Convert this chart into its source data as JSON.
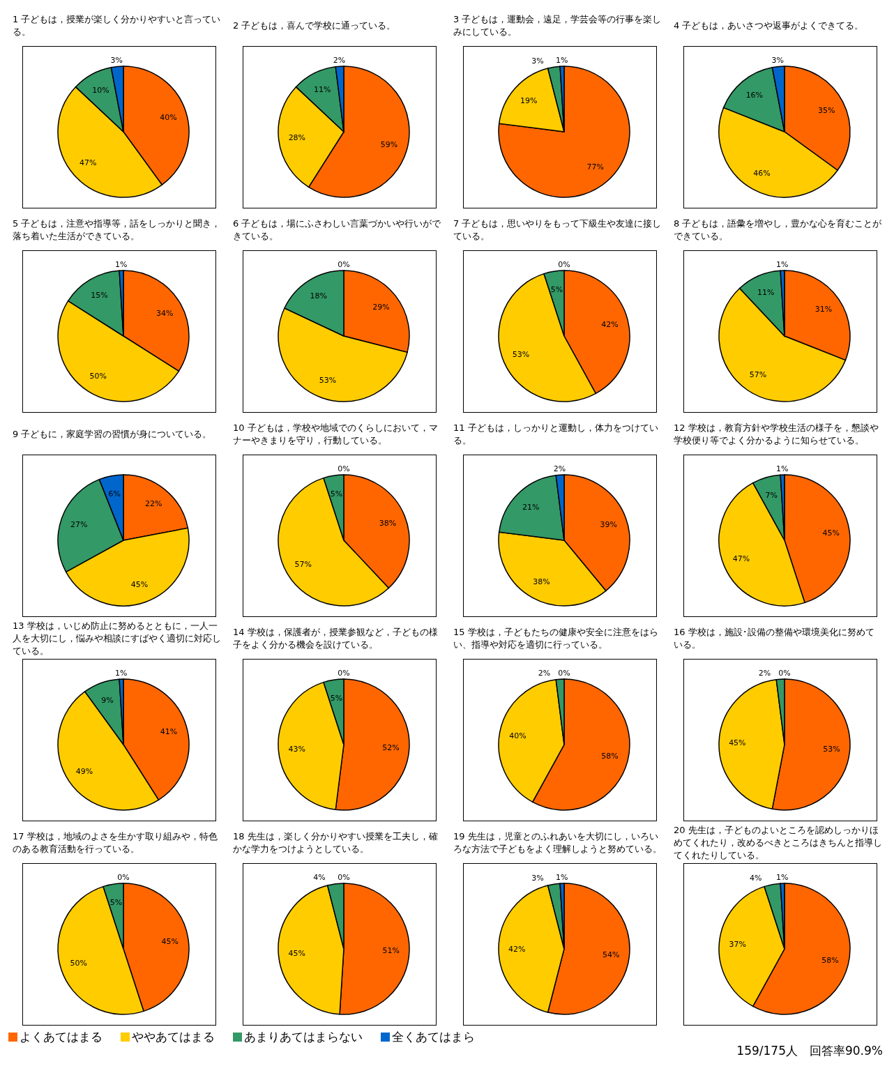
{
  "chart_data": [
    {
      "type": "pie",
      "title": "1 子どもは，授業が楽しく分かりやすいと言っている。",
      "categories": [
        null,
        null,
        null,
        null
      ],
      "values": [
        40,
        47,
        10,
        3
      ],
      "value_labels": [
        "40%",
        "47%",
        "10%",
        "3%"
      ],
      "colors": [
        "#ff6600",
        "#ffcc00",
        "#339966",
        "#0066cc"
      ]
    },
    {
      "type": "pie",
      "title": "2 子どもは，喜んで学校に通っている。",
      "categories": [
        null,
        null,
        null,
        null
      ],
      "values": [
        59,
        28,
        11,
        2
      ],
      "value_labels": [
        "59%",
        "28%",
        "11%",
        "2%"
      ],
      "colors": [
        "#ff6600",
        "#ffcc00",
        "#339966",
        "#0066cc"
      ]
    },
    {
      "type": "pie",
      "title": "3 子どもは，運動会，遠足，学芸会等の行事を楽しみにしている。",
      "categories": [
        null,
        null,
        null,
        null
      ],
      "values": [
        77,
        19,
        3,
        1
      ],
      "value_labels": [
        "77%",
        "19%",
        "3%",
        "1%"
      ],
      "colors": [
        "#ff6600",
        "#ffcc00",
        "#339966",
        "#0066cc"
      ]
    },
    {
      "type": "pie",
      "title": "4 子どもは，あいさつや返事がよくできてる。",
      "categories": [
        null,
        null,
        null,
        null
      ],
      "values": [
        35,
        46,
        16,
        3
      ],
      "value_labels": [
        "35%",
        "46%",
        "16%",
        "3%"
      ],
      "colors": [
        "#ff6600",
        "#ffcc00",
        "#339966",
        "#0066cc"
      ]
    },
    {
      "type": "pie",
      "title": "5 子どもは，注意や指導等，話をしっかりと聞き，落ち着いた生活ができている。",
      "categories": [
        null,
        null,
        null,
        null
      ],
      "values": [
        34,
        50,
        15,
        1
      ],
      "value_labels": [
        "34%",
        "50%",
        "15%",
        "1%"
      ],
      "colors": [
        "#ff6600",
        "#ffcc00",
        "#339966",
        "#0066cc"
      ]
    },
    {
      "type": "pie",
      "title": "6 子どもは，場にふさわしい言葉づかいや行いができている。",
      "categories": [
        null,
        null,
        null,
        null
      ],
      "values": [
        29,
        53,
        18,
        0
      ],
      "value_labels": [
        "29%",
        "53%",
        "18%",
        "0%"
      ],
      "colors": [
        "#ff6600",
        "#ffcc00",
        "#339966",
        "#0066cc"
      ]
    },
    {
      "type": "pie",
      "title": "7 子どもは，思いやりをもって下級生や友達に接している。",
      "categories": [
        null,
        null,
        null,
        null
      ],
      "values": [
        42,
        53,
        5,
        0
      ],
      "value_labels": [
        "42%",
        "53%",
        "5%",
        "0%"
      ],
      "colors": [
        "#ff6600",
        "#ffcc00",
        "#339966",
        "#0066cc"
      ]
    },
    {
      "type": "pie",
      "title": "8 子どもは，語彙を増やし，豊かな心を育むことができている。",
      "categories": [
        null,
        null,
        null,
        null
      ],
      "values": [
        31,
        57,
        11,
        1
      ],
      "value_labels": [
        "31%",
        "57%",
        "11%",
        "1%"
      ],
      "colors": [
        "#ff6600",
        "#ffcc00",
        "#339966",
        "#0066cc"
      ]
    },
    {
      "type": "pie",
      "title": "9 子どもに，家庭学習の習慣が身についている。",
      "categories": [
        null,
        null,
        null,
        null
      ],
      "values": [
        22,
        45,
        27,
        6
      ],
      "value_labels": [
        "22%",
        "45%",
        "27%",
        "6%"
      ],
      "colors": [
        "#ff6600",
        "#ffcc00",
        "#339966",
        "#0066cc"
      ]
    },
    {
      "type": "pie",
      "title": "10 子どもは，学校や地域でのくらしにおいて，マナーやきまりを守り，行動している。",
      "categories": [
        null,
        null,
        null,
        null
      ],
      "values": [
        38,
        57,
        5,
        0
      ],
      "value_labels": [
        "38%",
        "57%",
        "5%",
        "0%"
      ],
      "colors": [
        "#ff6600",
        "#ffcc00",
        "#339966",
        "#0066cc"
      ]
    },
    {
      "type": "pie",
      "title": "11 子どもは，しっかりと運動し，体力をつけている。",
      "categories": [
        null,
        null,
        null,
        null
      ],
      "values": [
        39,
        38,
        21,
        2
      ],
      "value_labels": [
        "39%",
        "38%",
        "21%",
        "2%"
      ],
      "colors": [
        "#ff6600",
        "#ffcc00",
        "#339966",
        "#0066cc"
      ]
    },
    {
      "type": "pie",
      "title": "12 学校は，教育方針や学校生活の様子を，懇談や学校便り等でよく分かるように知らせている。",
      "categories": [
        null,
        null,
        null,
        null
      ],
      "values": [
        45,
        47,
        7,
        1
      ],
      "value_labels": [
        "45%",
        "47%",
        "7%",
        "1%"
      ],
      "colors": [
        "#ff6600",
        "#ffcc00",
        "#339966",
        "#0066cc"
      ]
    },
    {
      "type": "pie",
      "title": "13 学校は，いじめ防止に努めるとともに，一人一人を大切にし，悩みや相談にすばやく適切に対応している。",
      "categories": [
        null,
        null,
        null,
        null
      ],
      "values": [
        41,
        49,
        9,
        1
      ],
      "value_labels": [
        "41%",
        "49%",
        "9%",
        "1%"
      ],
      "colors": [
        "#ff6600",
        "#ffcc00",
        "#339966",
        "#0066cc"
      ]
    },
    {
      "type": "pie",
      "title": "14 学校は，保護者が，授業参観など，子どもの様子をよく分かる機会を設けている。",
      "categories": [
        null,
        null,
        null,
        null
      ],
      "values": [
        52,
        43,
        5,
        0
      ],
      "value_labels": [
        "52%",
        "43%",
        "5%",
        "0%"
      ],
      "colors": [
        "#ff6600",
        "#ffcc00",
        "#339966",
        "#0066cc"
      ]
    },
    {
      "type": "pie",
      "title": "15 学校は，子どもたちの健康や安全に注意をはらい、指導や対応を適切に行っている。",
      "categories": [
        null,
        null,
        null,
        null
      ],
      "values": [
        58,
        40,
        2,
        0
      ],
      "value_labels": [
        "58%",
        "40%",
        "2%",
        "0%"
      ],
      "colors": [
        "#ff6600",
        "#ffcc00",
        "#339966",
        "#0066cc"
      ]
    },
    {
      "type": "pie",
      "title": "16 学校は，施設･設備の整備や環境美化に努めている。",
      "categories": [
        null,
        null,
        null,
        null
      ],
      "values": [
        53,
        45,
        2,
        0
      ],
      "value_labels": [
        "53%",
        "45%",
        "2%",
        "0%"
      ],
      "colors": [
        "#ff6600",
        "#ffcc00",
        "#339966",
        "#0066cc"
      ]
    },
    {
      "type": "pie",
      "title": "17 学校は，地域のよさを生かす取り組みや，特色のある教育活動を行っている。",
      "categories": [
        null,
        null,
        null,
        null
      ],
      "values": [
        45,
        50,
        5,
        0
      ],
      "value_labels": [
        "45%",
        "50%",
        "5%",
        "0%"
      ],
      "colors": [
        "#ff6600",
        "#ffcc00",
        "#339966",
        "#0066cc"
      ]
    },
    {
      "type": "pie",
      "title": "18 先生は，楽しく分かりやすい授業を工夫し，確かな学力をつけようとしている。",
      "categories": [
        null,
        null,
        null,
        null
      ],
      "values": [
        51,
        45,
        4,
        0
      ],
      "value_labels": [
        "51%",
        "45%",
        "4%",
        "0%"
      ],
      "colors": [
        "#ff6600",
        "#ffcc00",
        "#339966",
        "#0066cc"
      ]
    },
    {
      "type": "pie",
      "title": "19 先生は，児童とのふれあいを大切にし，いろいろな方法で子どもをよく理解しようと努めている。",
      "categories": [
        null,
        null,
        null,
        null
      ],
      "values": [
        54,
        42,
        3,
        1
      ],
      "value_labels": [
        "54%",
        "42%",
        "3%",
        "1%"
      ],
      "colors": [
        "#ff6600",
        "#ffcc00",
        "#339966",
        "#0066cc"
      ]
    },
    {
      "type": "pie",
      "title": "20 先生は，子どものよいところを認めしっかりほめてくれたり，改めるべきところはきちんと指導してくれたりしている。",
      "categories": [
        "よくあてはまる",
        "ややあてはまる",
        "あまりあてはまらない",
        "全くあてはまら"
      ],
      "values": [
        58,
        37,
        4,
        1
      ],
      "value_labels": [
        "58%",
        "37%",
        "4%",
        "1%"
      ],
      "colors": [
        "#ff6600",
        "#ffcc00",
        "#339966",
        "#0066cc"
      ],
      "legend": "bottom",
      "annotations": [
        "159/175人　回答率90.9%"
      ]
    }
  ]
}
